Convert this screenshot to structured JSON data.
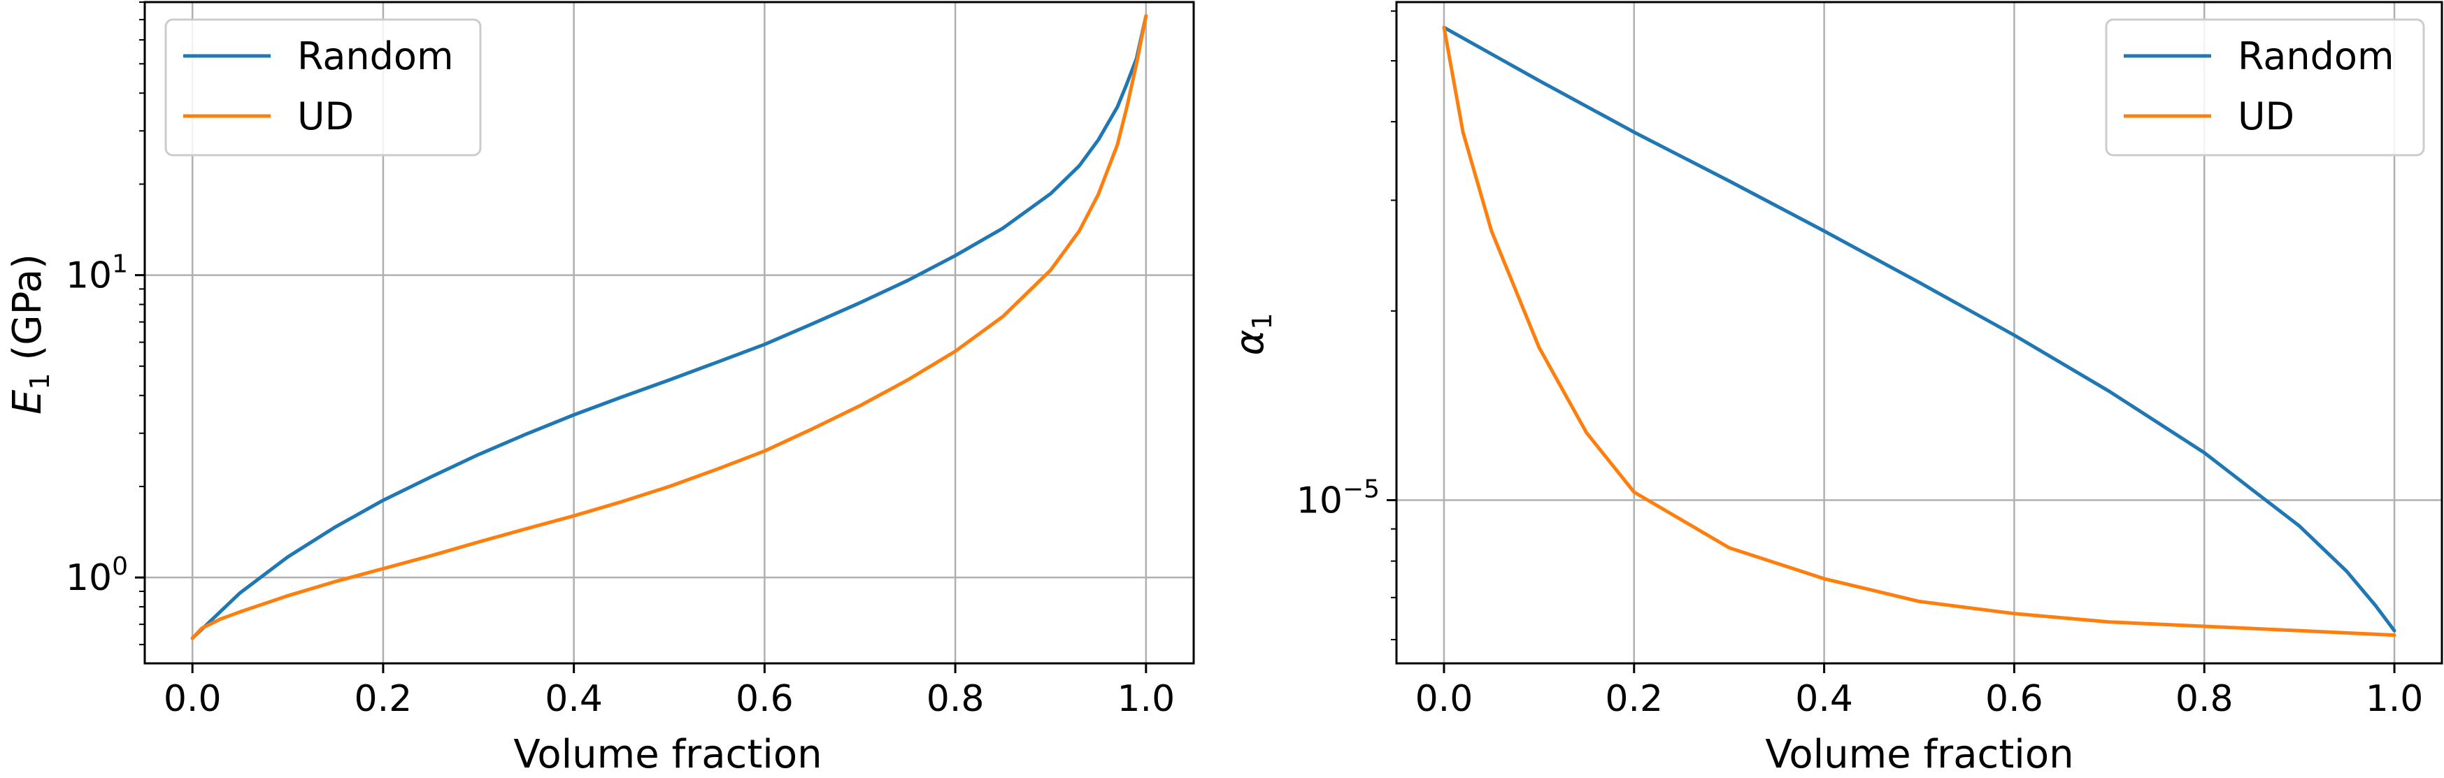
{
  "chart_data": [
    {
      "type": "line",
      "xlabel": "Volume fraction",
      "ylabel_symbol": "E",
      "ylabel_subscript": "1",
      "ylabel_unit": " (GPa)",
      "yscale": "log",
      "xlim": [
        -0.05,
        1.05
      ],
      "ylim": [
        0.52,
        80
      ],
      "xticks": [
        "0.0",
        "0.2",
        "0.4",
        "0.6",
        "0.8",
        "1.0"
      ],
      "yticks": [
        {
          "value": 1,
          "base": "10",
          "exp": "0"
        },
        {
          "value": 10,
          "base": "10",
          "exp": "1"
        }
      ],
      "grid": true,
      "legend_position": "upper-left",
      "series": [
        {
          "name": "Random",
          "color": "#1f77b4",
          "x": [
            0.0,
            0.05,
            0.1,
            0.15,
            0.2,
            0.25,
            0.3,
            0.35,
            0.4,
            0.45,
            0.5,
            0.55,
            0.6,
            0.65,
            0.7,
            0.75,
            0.8,
            0.85,
            0.9,
            0.93,
            0.95,
            0.97,
            0.98,
            0.99,
            1.0
          ],
          "y": [
            0.63,
            0.89,
            1.17,
            1.47,
            1.8,
            2.15,
            2.55,
            2.98,
            3.45,
            3.95,
            4.5,
            5.15,
            5.9,
            6.9,
            8.1,
            9.6,
            11.6,
            14.3,
            18.6,
            23,
            28,
            36,
            43,
            52,
            72
          ]
        },
        {
          "name": "UD",
          "color": "#ff7f0e",
          "x": [
            0.0,
            0.01,
            0.03,
            0.05,
            0.1,
            0.15,
            0.2,
            0.25,
            0.3,
            0.35,
            0.4,
            0.45,
            0.5,
            0.55,
            0.6,
            0.65,
            0.7,
            0.75,
            0.8,
            0.85,
            0.9,
            0.93,
            0.95,
            0.97,
            0.98,
            0.99,
            1.0
          ],
          "y": [
            0.63,
            0.68,
            0.73,
            0.77,
            0.87,
            0.97,
            1.07,
            1.18,
            1.31,
            1.45,
            1.6,
            1.78,
            2.0,
            2.28,
            2.62,
            3.1,
            3.7,
            4.5,
            5.6,
            7.3,
            10.4,
            14,
            18.5,
            27,
            36,
            50,
            72
          ]
        }
      ]
    },
    {
      "type": "line",
      "xlabel": "Volume fraction",
      "ylabel_symbol": "α",
      "ylabel_subscript": "1",
      "ylabel_unit": "",
      "yscale": "log",
      "xlim": [
        -0.05,
        1.05
      ],
      "ylim": [
        5.5e-06,
        6.2e-05
      ],
      "xticks": [
        "0.0",
        "0.2",
        "0.4",
        "0.6",
        "0.8",
        "1.0"
      ],
      "yticks": [
        {
          "value": 1e-05,
          "base": "10",
          "exp": "−5"
        }
      ],
      "grid": true,
      "legend_position": "upper-right",
      "series": [
        {
          "name": "Random",
          "color": "#1f77b4",
          "x": [
            0.0,
            0.1,
            0.2,
            0.3,
            0.4,
            0.5,
            0.6,
            0.7,
            0.8,
            0.85,
            0.9,
            0.95,
            0.98,
            1.0
          ],
          "y": [
            5.65e-05,
            4.65e-05,
            3.85e-05,
            3.22e-05,
            2.68e-05,
            2.22e-05,
            1.83e-05,
            1.49e-05,
            1.19e-05,
            1.04e-05,
            9.1e-06,
            7.7e-06,
            6.8e-06,
            6.2e-06
          ]
        },
        {
          "name": "UD",
          "color": "#ff7f0e",
          "x": [
            0.0,
            0.02,
            0.05,
            0.1,
            0.15,
            0.2,
            0.3,
            0.4,
            0.5,
            0.6,
            0.7,
            0.8,
            0.9,
            1.0
          ],
          "y": [
            5.65e-05,
            3.85e-05,
            2.68e-05,
            1.75e-05,
            1.28e-05,
            1.03e-05,
            8.4e-06,
            7.5e-06,
            6.9e-06,
            6.6e-06,
            6.4e-06,
            6.3e-06,
            6.2e-06,
            6.1e-06
          ]
        }
      ]
    }
  ]
}
